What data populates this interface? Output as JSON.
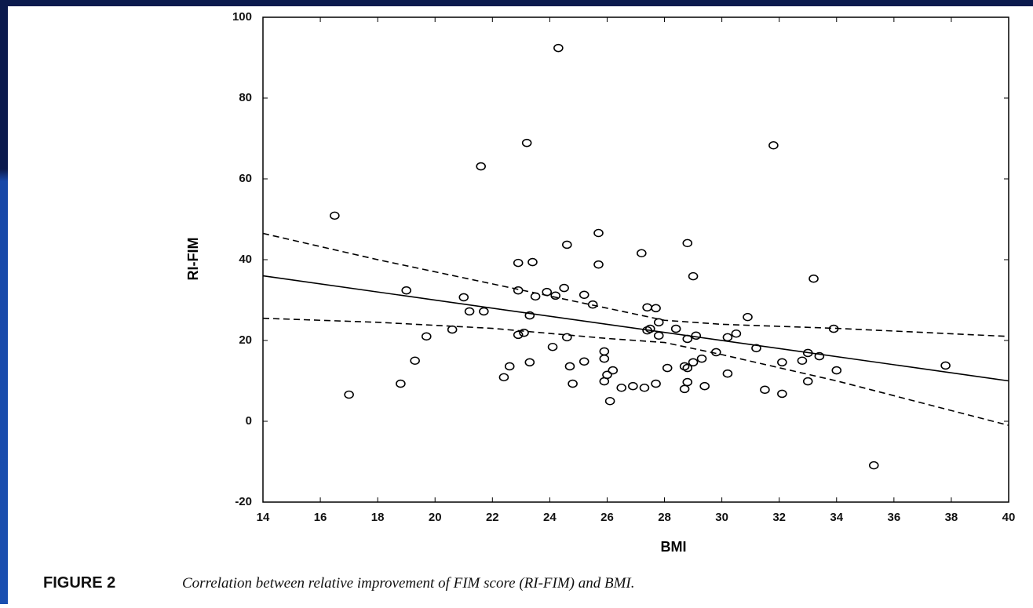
{
  "chart_data": {
    "type": "scatter",
    "xlabel": "BMI",
    "ylabel": "RI-FIM",
    "caption_label": "FIGURE 2",
    "caption": "Correlation between relative improvement of FIM score (RI-FIM) and BMI.",
    "xlim": [
      14,
      40
    ],
    "ylim": [
      -20,
      100
    ],
    "xticks": [
      14,
      16,
      18,
      20,
      22,
      24,
      26,
      28,
      30,
      32,
      34,
      36,
      38,
      40
    ],
    "yticks": [
      -20,
      0,
      20,
      40,
      60,
      80,
      100
    ],
    "series": [
      {
        "style": "marker",
        "color": "#000000",
        "x": [
          16.5,
          17.0,
          19.0,
          18.8,
          19.3,
          19.7,
          20.6,
          21.0,
          21.2,
          21.7,
          21.6,
          22.4,
          22.6,
          22.9,
          22.9,
          22.9,
          23.1,
          23.2,
          23.3,
          23.3,
          23.4,
          23.5,
          23.9,
          24.1,
          24.2,
          24.3,
          24.5,
          24.6,
          24.6,
          24.7,
          24.8,
          25.2,
          25.2,
          25.5,
          25.7,
          25.7,
          25.9,
          25.9,
          25.9,
          26.0,
          26.1,
          26.2,
          26.5,
          26.9,
          27.2,
          27.3,
          27.4,
          27.4,
          27.5,
          27.7,
          27.8,
          27.8,
          27.7,
          28.1,
          28.4,
          28.7,
          28.8,
          28.8,
          28.8,
          28.8,
          28.7,
          29.0,
          29.0,
          29.1,
          29.3,
          29.4,
          29.8,
          30.2,
          30.2,
          30.5,
          30.9,
          31.2,
          31.5,
          31.8,
          32.1,
          32.1,
          32.8,
          33.0,
          33.0,
          33.2,
          33.4,
          33.9,
          34.0,
          35.3,
          37.8
        ],
        "values": [
          50.9,
          6.6,
          32.4,
          9.3,
          15,
          21,
          22.7,
          30.7,
          27.2,
          27.2,
          63.1,
          10.9,
          13.6,
          39.2,
          32.4,
          21.4,
          21.9,
          68.9,
          26.2,
          14.6,
          39.4,
          30.9,
          32.0,
          18.4,
          31.1,
          92.4,
          33.0,
          43.7,
          20.8,
          13.6,
          9.3,
          31.3,
          14.8,
          28.9,
          38.8,
          46.6,
          17.3,
          15.5,
          9.9,
          11.5,
          5.0,
          12.6,
          8.3,
          8.7,
          41.6,
          8.3,
          28.2,
          22.5,
          22.9,
          28.0,
          21.2,
          24.5,
          9.3,
          13.2,
          22.9,
          13.6,
          44.1,
          20.4,
          13.2,
          9.7,
          8.0,
          35.9,
          14.6,
          21.2,
          15.5,
          8.7,
          17.1,
          20.8,
          11.8,
          21.7,
          25.8,
          18.1,
          7.8,
          68.3,
          14.6,
          6.8,
          15.0,
          16.9,
          9.9,
          35.3,
          16.1,
          22.9,
          12.6,
          -10.9,
          13.8
        ]
      },
      {
        "style": "solid",
        "color": "#000000",
        "x": [
          14,
          40
        ],
        "values": [
          36,
          10
        ]
      },
      {
        "style": "dashed",
        "color": "#000000",
        "x": [
          14,
          18,
          22,
          26,
          28,
          30,
          34,
          40
        ],
        "values": [
          46.5,
          40,
          34,
          28,
          25,
          24,
          23,
          21
        ]
      },
      {
        "style": "dashed",
        "color": "#000000",
        "x": [
          14,
          18,
          22,
          26,
          28,
          30,
          34,
          40
        ],
        "values": [
          25.5,
          24.5,
          23,
          20.5,
          19.5,
          16.5,
          10,
          -1
        ]
      }
    ]
  }
}
